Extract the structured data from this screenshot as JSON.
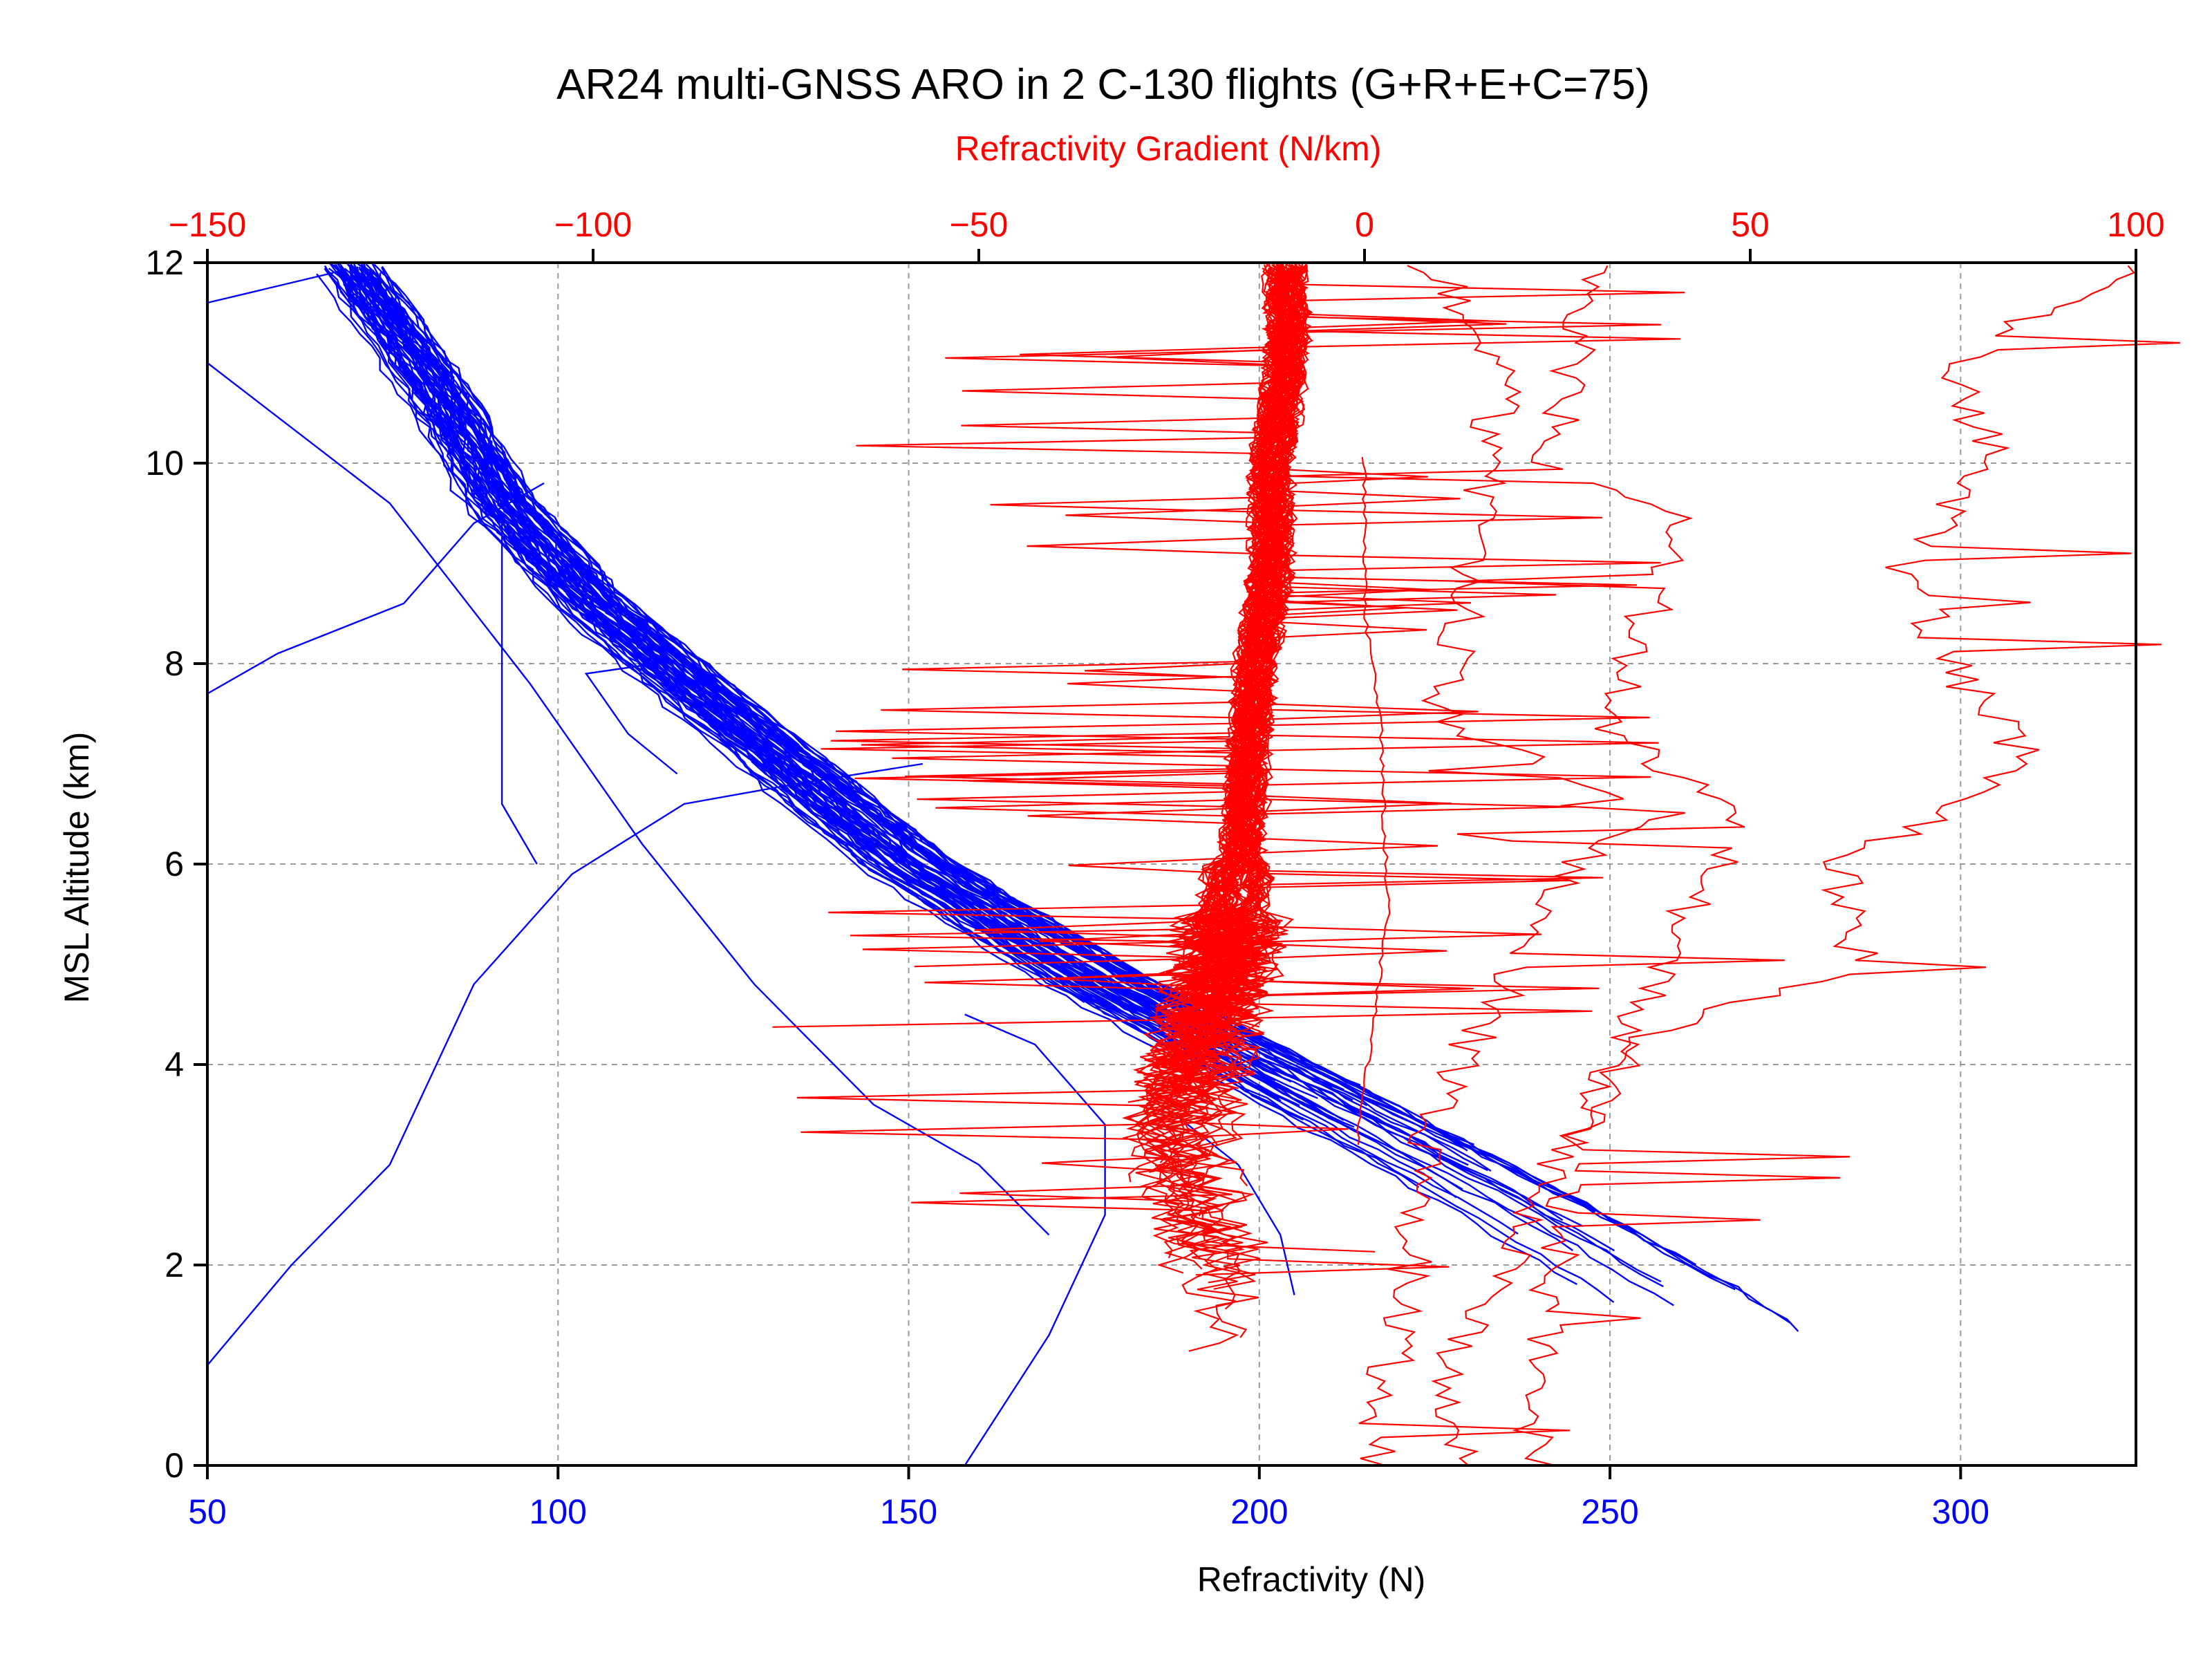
{
  "chart_data": {
    "type": "line",
    "title": "AR24 multi-GNSS ARO in 2 C-130 flights (G+R+E+C=75)",
    "ylabel": "MSL Altitude (km)",
    "ylim": [
      0,
      12
    ],
    "yticks": [
      0,
      2,
      4,
      6,
      8,
      10,
      12
    ],
    "grid": true,
    "axes": {
      "bottom": {
        "label": "Refractivity (N)",
        "color": "#0000ff",
        "xlim": [
          50,
          325
        ],
        "ticks": [
          50,
          100,
          150,
          200,
          250,
          300
        ]
      },
      "top": {
        "label": "Refractivity Gradient (N/km)",
        "color": "#ff0000",
        "xlim": [
          -150,
          100
        ],
        "ticks": [
          -150,
          -100,
          -50,
          0,
          50,
          100
        ],
        "tick_labels": [
          "−150",
          "−100",
          "−50",
          "0",
          "50",
          "100"
        ]
      }
    },
    "refractivity_profiles": {
      "axis": "bottom",
      "color": "#0000ff",
      "count": 75,
      "typical": [
        [
          273,
          0.9
        ],
        [
          262,
          1.6
        ],
        [
          240,
          2.5
        ],
        [
          205,
          3.8
        ],
        [
          178,
          4.8
        ],
        [
          150,
          6.0
        ],
        [
          122,
          7.6
        ],
        [
          105,
          8.6
        ],
        [
          92,
          9.6
        ],
        [
          82,
          10.8
        ],
        [
          70,
          12.0
        ]
      ],
      "outliers": [
        [
          [
            50,
            1.0
          ],
          [
            62,
            2.0
          ],
          [
            76,
            3.0
          ],
          [
            88,
            4.8
          ],
          [
            102,
            5.9
          ],
          [
            118,
            6.6
          ],
          [
            134,
            6.8
          ],
          [
            152,
            7.0
          ]
        ],
        [
          [
            158,
            0.0
          ],
          [
            170,
            1.3
          ],
          [
            178,
            2.5
          ],
          [
            178,
            3.4
          ],
          [
            168,
            4.2
          ],
          [
            158,
            4.5
          ]
        ],
        [
          [
            50,
            7.7
          ],
          [
            60,
            8.1
          ],
          [
            78,
            8.6
          ],
          [
            88,
            9.4
          ],
          [
            98,
            9.8
          ]
        ],
        [
          [
            170,
            2.3
          ],
          [
            160,
            3.0
          ],
          [
            145,
            3.6
          ],
          [
            128,
            4.8
          ],
          [
            112,
            6.2
          ],
          [
            96,
            7.8
          ],
          [
            76,
            9.6
          ],
          [
            50,
            11.0
          ]
        ],
        [
          [
            97,
            6.0
          ],
          [
            92,
            6.6
          ],
          [
            92,
            9.4
          ]
        ],
        [
          [
            117,
            6.9
          ],
          [
            110,
            7.3
          ],
          [
            104,
            7.9
          ],
          [
            114,
            8.0
          ]
        ],
        [
          [
            50,
            11.6
          ],
          [
            68,
            11.9
          ]
        ],
        [
          [
            205,
            1.7
          ],
          [
            203,
            2.3
          ],
          [
            197,
            3.0
          ],
          [
            188,
            3.5
          ]
        ]
      ]
    },
    "gradient_profiles": {
      "axis": "top",
      "color": "#ff0000",
      "count": 75,
      "typical": [
        [
          -20,
          2.4
        ],
        [
          -24,
          3.2
        ],
        [
          -22,
          4.0
        ],
        [
          -18,
          5.0
        ],
        [
          -16,
          6.0
        ],
        [
          -15,
          7.0
        ],
        [
          -14,
          8.0
        ],
        [
          -12,
          9.0
        ],
        [
          -12,
          10.0
        ],
        [
          -10,
          11.0
        ],
        [
          -10,
          12.0
        ]
      ],
      "outliers": [
        [
          [
            12,
            0.0
          ],
          [
            10,
            1.0
          ],
          [
            18,
            2.0
          ],
          [
            26,
            3.2
          ],
          [
            36,
            4.3
          ],
          [
            64,
            5.0
          ],
          [
            62,
            6.0
          ],
          [
            86,
            7.0
          ],
          [
            76,
            8.0
          ],
          [
            70,
            9.0
          ],
          [
            82,
            10.0
          ],
          [
            76,
            11.0
          ],
          [
            100,
            12.0
          ]
        ],
        [
          [
            22,
            0.0
          ],
          [
            24,
            1.5
          ],
          [
            26,
            2.5
          ],
          [
            29,
            3.5
          ],
          [
            38,
            5.0
          ],
          [
            50,
            6.5
          ],
          [
            32,
            7.3
          ],
          [
            38,
            8.8
          ],
          [
            42,
            9.5
          ],
          [
            24,
            10.0
          ],
          [
            30,
            12.0
          ]
        ],
        [
          [
            1,
            0.0
          ],
          [
            6,
            2.0
          ],
          [
            8,
            3.5
          ],
          [
            20,
            5.0
          ],
          [
            26,
            6.0
          ],
          [
            40,
            6.5
          ],
          [
            10,
            7.4
          ],
          [
            14,
            9.0
          ],
          [
            18,
            11.0
          ],
          [
            8,
            12.0
          ]
        ],
        [
          [
            -1,
            3.2
          ],
          [
            3,
            5.5
          ],
          [
            2,
            7.5
          ],
          [
            0,
            8.5
          ],
          [
            0,
            10.1
          ]
        ]
      ]
    }
  }
}
